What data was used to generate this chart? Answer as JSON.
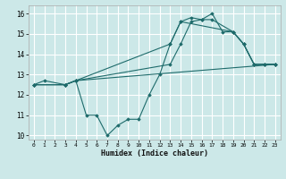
{
  "title": "",
  "xlabel": "Humidex (Indice chaleur)",
  "xlim": [
    -0.5,
    23.5
  ],
  "ylim": [
    9.8,
    16.4
  ],
  "yticks": [
    10,
    11,
    12,
    13,
    14,
    15,
    16
  ],
  "xticks": [
    0,
    1,
    2,
    3,
    4,
    5,
    6,
    7,
    8,
    9,
    10,
    11,
    12,
    13,
    14,
    15,
    16,
    17,
    18,
    19,
    20,
    21,
    22,
    23
  ],
  "bg_color": "#cce8e8",
  "line_color": "#1e6b6b",
  "grid_color": "#ffffff",
  "series": [
    {
      "x": [
        0,
        1,
        3,
        4,
        5,
        6,
        7,
        8,
        9,
        10,
        11,
        12,
        13,
        14,
        19,
        20,
        21,
        22,
        23
      ],
      "y": [
        12.5,
        12.7,
        12.5,
        12.7,
        11.0,
        11.0,
        10.0,
        10.5,
        10.8,
        10.8,
        12.0,
        13.0,
        14.5,
        15.6,
        15.1,
        14.5,
        13.5,
        13.5,
        13.5
      ]
    },
    {
      "x": [
        0,
        3,
        4,
        13,
        14,
        15,
        16,
        17,
        18,
        19,
        20,
        21,
        22,
        23
      ],
      "y": [
        12.5,
        12.5,
        12.7,
        14.5,
        15.6,
        15.8,
        15.7,
        16.0,
        15.1,
        15.1,
        14.5,
        13.5,
        13.5,
        13.5
      ]
    },
    {
      "x": [
        0,
        3,
        4,
        13,
        14,
        15,
        16,
        17,
        19,
        20,
        21,
        22,
        23
      ],
      "y": [
        12.5,
        12.5,
        12.7,
        13.5,
        14.5,
        15.6,
        15.7,
        15.7,
        15.1,
        14.5,
        13.5,
        13.5,
        13.5
      ]
    },
    {
      "x": [
        0,
        3,
        4,
        23
      ],
      "y": [
        12.5,
        12.5,
        12.7,
        13.5
      ]
    }
  ]
}
